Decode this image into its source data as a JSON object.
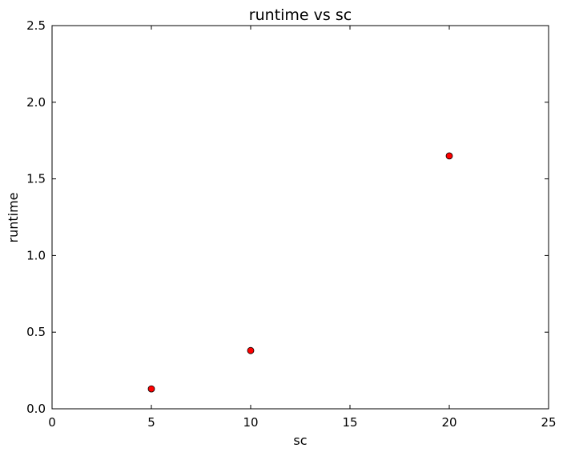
{
  "chart_data": {
    "type": "scatter",
    "title": "runtime vs sc",
    "xlabel": "sc",
    "ylabel": "runtime",
    "xlim": [
      0,
      25
    ],
    "ylim": [
      0.0,
      2.5
    ],
    "xticks": [
      "0",
      "5",
      "10",
      "15",
      "20",
      "25"
    ],
    "yticks": [
      "0.0",
      "0.5",
      "1.0",
      "1.5",
      "2.0",
      "2.5"
    ],
    "grid": false,
    "series": [
      {
        "points": [
          {
            "x": 5,
            "y": 0.13
          },
          {
            "x": 10,
            "y": 0.38
          },
          {
            "x": 20,
            "y": 1.65
          }
        ],
        "color": "#ff0000"
      }
    ]
  }
}
